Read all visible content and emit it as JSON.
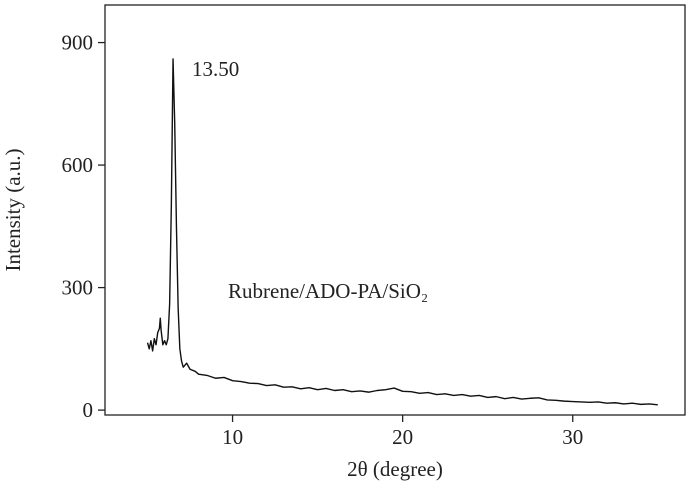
{
  "chart_data": {
    "type": "line",
    "x_label": "2θ  (degree)",
    "y_label": "Intensity (a.u.)",
    "annotations": [
      "13.50",
      "Rubrene/ADO-PA/SiO₂"
    ],
    "xlim": [
      2.5,
      36.6
    ],
    "ylim": [
      -12,
      992
    ],
    "xticks": [
      10,
      20,
      30
    ],
    "yticks": [
      0,
      300,
      600,
      900
    ],
    "grid": false,
    "x": [
      5.0,
      5.1,
      5.2,
      5.3,
      5.4,
      5.5,
      5.6,
      5.7,
      5.75,
      5.8,
      5.9,
      6.0,
      6.1,
      6.2,
      6.3,
      6.4,
      6.5,
      6.55,
      6.6,
      6.7,
      6.8,
      6.9,
      7.0,
      7.1,
      7.3,
      7.5,
      7.8,
      8.0,
      8.5,
      9.0,
      9.5,
      10.0,
      10.5,
      11.0,
      11.5,
      12.0,
      12.5,
      13.0,
      13.5,
      14.0,
      14.5,
      15.0,
      15.5,
      16.0,
      16.5,
      17.0,
      17.5,
      18.0,
      18.5,
      19.0,
      19.5,
      20.0,
      20.5,
      21.0,
      21.5,
      22.0,
      22.5,
      23.0,
      23.5,
      24.0,
      24.5,
      25.0,
      25.5,
      26.0,
      26.5,
      27.0,
      27.5,
      28.0,
      28.5,
      29.0,
      29.5,
      30.0,
      30.5,
      31.0,
      31.5,
      32.0,
      32.5,
      33.0,
      33.5,
      34.0,
      34.5,
      35.0
    ],
    "series": [
      {
        "name": "Rubrene/ADO-PA/SiO₂",
        "color": "#111111",
        "values": [
          165,
          150,
          170,
          145,
          175,
          160,
          190,
          200,
          225,
          195,
          160,
          170,
          160,
          175,
          260,
          500,
          860,
          780,
          700,
          450,
          250,
          150,
          120,
          105,
          115,
          100,
          95,
          88,
          85,
          78,
          80,
          72,
          70,
          66,
          65,
          60,
          62,
          56,
          57,
          52,
          55,
          50,
          53,
          48,
          50,
          45,
          47,
          44,
          48,
          50,
          54,
          46,
          45,
          41,
          43,
          38,
          40,
          36,
          38,
          34,
          36,
          31,
          33,
          28,
          31,
          27,
          29,
          30,
          25,
          24,
          22,
          21,
          20,
          19,
          20,
          17,
          18,
          15,
          17,
          14,
          15,
          13
        ]
      }
    ]
  }
}
